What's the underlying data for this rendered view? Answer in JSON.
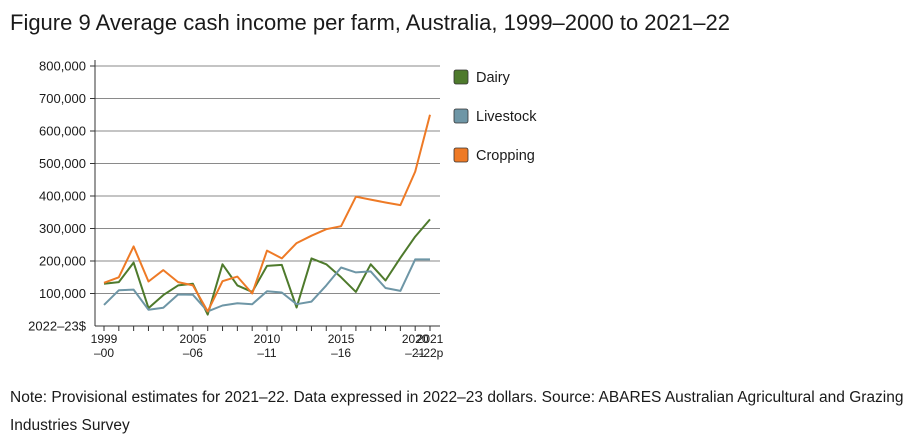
{
  "title": "Figure 9 Average cash income per farm, Australia, 1999–2000 to 2021–22",
  "note": "Note: Provisional estimates for 2021–22. Data expressed in 2022–23 dollars. Source: ABARES Australian Agricultural and Grazing Industries Survey",
  "chart_data": {
    "type": "line",
    "ylabel": "2022–23$",
    "ylim": [
      0,
      800000
    ],
    "yticks": [
      {
        "value": 100000,
        "label": "100,000"
      },
      {
        "value": 200000,
        "label": "200,000"
      },
      {
        "value": 300000,
        "label": "300,000"
      },
      {
        "value": 400000,
        "label": "400,000"
      },
      {
        "value": 500000,
        "label": "500,000"
      },
      {
        "value": 600000,
        "label": "600,000"
      },
      {
        "value": 700000,
        "label": "700,000"
      },
      {
        "value": 800000,
        "label": "800,000"
      }
    ],
    "xticks": [
      {
        "index": 0,
        "line1": "1999",
        "line2": "–00"
      },
      {
        "index": 6,
        "line1": "2005",
        "line2": "–06"
      },
      {
        "index": 11,
        "line1": "2010",
        "line2": "–11"
      },
      {
        "index": 16,
        "line1": "2015",
        "line2": "–16"
      },
      {
        "index": 21,
        "line1": "2020",
        "line2": "–21"
      },
      {
        "index": 22,
        "line1": "2021",
        "line2": "–22p"
      }
    ],
    "x": [
      "1999–00",
      "2000–01",
      "2001–02",
      "2002–03",
      "2003–04",
      "2004–05",
      "2005–06",
      "2006–07",
      "2007–08",
      "2008–09",
      "2009–10",
      "2010–11",
      "2011–12",
      "2012–13",
      "2013–14",
      "2014–15",
      "2015–16",
      "2016–17",
      "2017–18",
      "2018–19",
      "2019–20",
      "2020–21",
      "2021–22p"
    ],
    "grid": true,
    "legend_position": "right",
    "series": [
      {
        "name": "Dairy",
        "color": "#4e7a2c",
        "values": [
          130000,
          135000,
          195000,
          55000,
          95000,
          125000,
          130000,
          35000,
          190000,
          125000,
          105000,
          185000,
          188000,
          57000,
          208000,
          190000,
          150000,
          105000,
          190000,
          140000,
          210000,
          275000,
          328000
        ]
      },
      {
        "name": "Livestock",
        "color": "#6e96a6",
        "values": [
          65000,
          110000,
          112000,
          50000,
          56000,
          97000,
          96000,
          45000,
          63000,
          70000,
          67000,
          107000,
          103000,
          67000,
          75000,
          125000,
          180000,
          165000,
          168000,
          117000,
          108000,
          205000,
          205000
        ]
      },
      {
        "name": "Cropping",
        "color": "#ee7a26",
        "values": [
          133000,
          150000,
          245000,
          137000,
          172000,
          135000,
          125000,
          45000,
          138000,
          152000,
          100000,
          232000,
          208000,
          255000,
          278000,
          298000,
          307000,
          398000,
          389000,
          380000,
          372000,
          475000,
          650000
        ]
      }
    ]
  }
}
